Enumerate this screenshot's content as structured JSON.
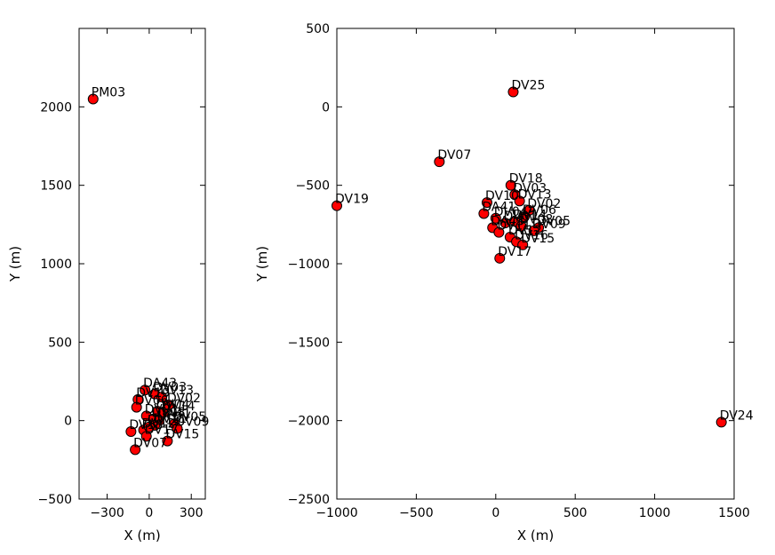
{
  "chart_data": [
    {
      "type": "scatter",
      "title": "",
      "xlabel": "X (m)",
      "ylabel": "Y (m)",
      "xlim": [
        -500,
        400
      ],
      "ylim": [
        -500,
        2500
      ],
      "xticks": [
        -300,
        0,
        300
      ],
      "yticks": [
        -500,
        0,
        500,
        1000,
        1500,
        2000
      ],
      "xtick_labels": [
        "−300",
        "0",
        "300"
      ],
      "ytick_labels": [
        "−500",
        "0",
        "500",
        "1000",
        "1500",
        "2000"
      ],
      "grid": false,
      "marker_color": "#ff0000",
      "points": [
        {
          "label": "PM03",
          "x": -400,
          "y": 2050
        },
        {
          "label": "DA43",
          "x": -30,
          "y": 195
        },
        {
          "label": "DV03",
          "x": 40,
          "y": 170
        },
        {
          "label": "DV13",
          "x": 90,
          "y": 150
        },
        {
          "label": "DV10",
          "x": -80,
          "y": 135
        },
        {
          "label": "DV02",
          "x": 140,
          "y": 100
        },
        {
          "label": "DV06",
          "x": -90,
          "y": 85
        },
        {
          "label": "DV04",
          "x": 60,
          "y": 60
        },
        {
          "label": "DV14",
          "x": 100,
          "y": 50
        },
        {
          "label": "DV01",
          "x": -20,
          "y": 30
        },
        {
          "label": "DV08",
          "x": 30,
          "y": 10
        },
        {
          "label": "DA41",
          "x": 70,
          "y": 0
        },
        {
          "label": "DV05",
          "x": 180,
          "y": -20
        },
        {
          "label": "DV09",
          "x": 200,
          "y": -50
        },
        {
          "label": "DV11",
          "x": 40,
          "y": -30
        },
        {
          "label": "DV12",
          "x": -40,
          "y": -60
        },
        {
          "label": "DV16",
          "x": 0,
          "y": -40
        },
        {
          "label": "DV15",
          "x": 130,
          "y": -130
        },
        {
          "label": "DV17",
          "x": -20,
          "y": -100
        },
        {
          "label": "DV18",
          "x": -130,
          "y": -70
        },
        {
          "label": "DV07",
          "x": -100,
          "y": -185
        }
      ],
      "visible_labels": [
        "PM03",
        "DA43",
        "DV03",
        "DV13",
        "DV02",
        "DV05",
        "DV15",
        "DV07"
      ]
    },
    {
      "type": "scatter",
      "title": "",
      "xlabel": "X (m)",
      "ylabel": "Y (m)",
      "xlim": [
        -1000,
        1500
      ],
      "ylim": [
        -2500,
        500
      ],
      "xticks": [
        -1000,
        -500,
        0,
        500,
        1000,
        1500
      ],
      "yticks": [
        -2500,
        -2000,
        -1500,
        -1000,
        -500,
        0,
        500
      ],
      "xtick_labels": [
        "−1000",
        "−500",
        "0",
        "500",
        "1000",
        "1500"
      ],
      "ytick_labels": [
        "−2500",
        "−2000",
        "−1500",
        "−1000",
        "−500",
        "0",
        "500"
      ],
      "grid": false,
      "marker_color": "#ff0000",
      "points": [
        {
          "label": "DV25",
          "x": 110,
          "y": 95
        },
        {
          "label": "DV07",
          "x": -355,
          "y": -350
        },
        {
          "label": "DV19",
          "x": -1000,
          "y": -630
        },
        {
          "label": "DV18",
          "x": 95,
          "y": -500
        },
        {
          "label": "DV03",
          "x": 120,
          "y": -560
        },
        {
          "label": "DV10",
          "x": -55,
          "y": -610
        },
        {
          "label": "DV13",
          "x": 150,
          "y": -600
        },
        {
          "label": "DA41",
          "x": -75,
          "y": -680
        },
        {
          "label": "DV02",
          "x": 210,
          "y": -660
        },
        {
          "label": "DV06",
          "x": 180,
          "y": -700
        },
        {
          "label": "DV04",
          "x": 0,
          "y": -710
        },
        {
          "label": "DV14",
          "x": 120,
          "y": -730
        },
        {
          "label": "DV01",
          "x": 60,
          "y": -740
        },
        {
          "label": "DV08",
          "x": 160,
          "y": -760
        },
        {
          "label": "DA43",
          "x": -20,
          "y": -770
        },
        {
          "label": "DV05",
          "x": 270,
          "y": -770
        },
        {
          "label": "DV09",
          "x": 240,
          "y": -790
        },
        {
          "label": "DV11",
          "x": 20,
          "y": -800
        },
        {
          "label": "DV12",
          "x": 90,
          "y": -830
        },
        {
          "label": "DV16",
          "x": 130,
          "y": -860
        },
        {
          "label": "DV15",
          "x": 170,
          "y": -880
        },
        {
          "label": "DV17",
          "x": 25,
          "y": -965
        },
        {
          "label": "DV24",
          "x": 1420,
          "y": -2010
        }
      ],
      "visible_labels": [
        "DV25",
        "DV07",
        "DV19",
        "DV18",
        "DV03",
        "DV10",
        "DV13",
        "DA41",
        "DV02",
        "DV05",
        "DV15",
        "DV17",
        "DV24"
      ]
    }
  ]
}
